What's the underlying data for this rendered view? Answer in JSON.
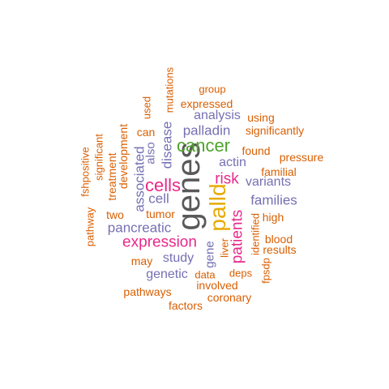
{
  "colors": {
    "gray": "#595959",
    "orange": "#d95f02",
    "purple": "#7570b3",
    "magenta": "#e7298a",
    "green": "#4ea42a",
    "gold": "#e6ab02"
  },
  "words": [
    {
      "text": "genes",
      "color": "gray",
      "vertical": true
    },
    {
      "text": "palld",
      "color": "gold",
      "vertical": true
    },
    {
      "text": "cancer",
      "color": "green",
      "vertical": false
    },
    {
      "text": "cells",
      "color": "magenta",
      "vertical": false
    },
    {
      "text": "expression",
      "color": "magenta",
      "vertical": false
    },
    {
      "text": "patients",
      "color": "magenta",
      "vertical": true
    },
    {
      "text": "risk",
      "color": "magenta",
      "vertical": false
    },
    {
      "text": "pancreatic",
      "color": "purple",
      "vertical": false
    },
    {
      "text": "associated",
      "color": "purple",
      "vertical": true
    },
    {
      "text": "disease",
      "color": "purple",
      "vertical": true
    },
    {
      "text": "palladin",
      "color": "purple",
      "vertical": false
    },
    {
      "text": "families",
      "color": "purple",
      "vertical": false
    },
    {
      "text": "analysis",
      "color": "purple",
      "vertical": false
    },
    {
      "text": "actin",
      "color": "purple",
      "vertical": false
    },
    {
      "text": "variants",
      "color": "purple",
      "vertical": false
    },
    {
      "text": "cell",
      "color": "purple",
      "vertical": false
    },
    {
      "text": "study",
      "color": "purple",
      "vertical": false
    },
    {
      "text": "genetic",
      "color": "purple",
      "vertical": false
    },
    {
      "text": "also",
      "color": "purple",
      "vertical": true
    },
    {
      "text": "gene",
      "color": "purple",
      "vertical": true
    },
    {
      "text": "development",
      "color": "orange",
      "vertical": true
    },
    {
      "text": "treatment",
      "color": "orange",
      "vertical": true
    },
    {
      "text": "significant",
      "color": "orange",
      "vertical": true
    },
    {
      "text": "fshpositive",
      "color": "orange",
      "vertical": true
    },
    {
      "text": "pathway",
      "color": "orange",
      "vertical": true
    },
    {
      "text": "two",
      "color": "orange",
      "vertical": false
    },
    {
      "text": "tumor",
      "color": "orange",
      "vertical": false
    },
    {
      "text": "can",
      "color": "orange",
      "vertical": false
    },
    {
      "text": "used",
      "color": "orange",
      "vertical": true
    },
    {
      "text": "mutations",
      "color": "orange",
      "vertical": true
    },
    {
      "text": "group",
      "color": "orange",
      "vertical": false
    },
    {
      "text": "expressed",
      "color": "orange",
      "vertical": false
    },
    {
      "text": "using",
      "color": "orange",
      "vertical": false
    },
    {
      "text": "significantly",
      "color": "orange",
      "vertical": false
    },
    {
      "text": "found",
      "color": "orange",
      "vertical": false
    },
    {
      "text": "pressure",
      "color": "orange",
      "vertical": false
    },
    {
      "text": "familial",
      "color": "orange",
      "vertical": false
    },
    {
      "text": "high",
      "color": "orange",
      "vertical": false
    },
    {
      "text": "identified",
      "color": "orange",
      "vertical": true
    },
    {
      "text": "blood",
      "color": "orange",
      "vertical": false
    },
    {
      "text": "results",
      "color": "orange",
      "vertical": false
    },
    {
      "text": "liver",
      "color": "orange",
      "vertical": true
    },
    {
      "text": "deps",
      "color": "orange",
      "vertical": false
    },
    {
      "text": "fpsdp",
      "color": "orange",
      "vertical": true
    },
    {
      "text": "data",
      "color": "orange",
      "vertical": false
    },
    {
      "text": "involved",
      "color": "orange",
      "vertical": false
    },
    {
      "text": "may",
      "color": "orange",
      "vertical": false
    },
    {
      "text": "pathways",
      "color": "orange",
      "vertical": false
    },
    {
      "text": "coronary",
      "color": "orange",
      "vertical": false
    },
    {
      "text": "factors",
      "color": "orange",
      "vertical": false
    }
  ]
}
